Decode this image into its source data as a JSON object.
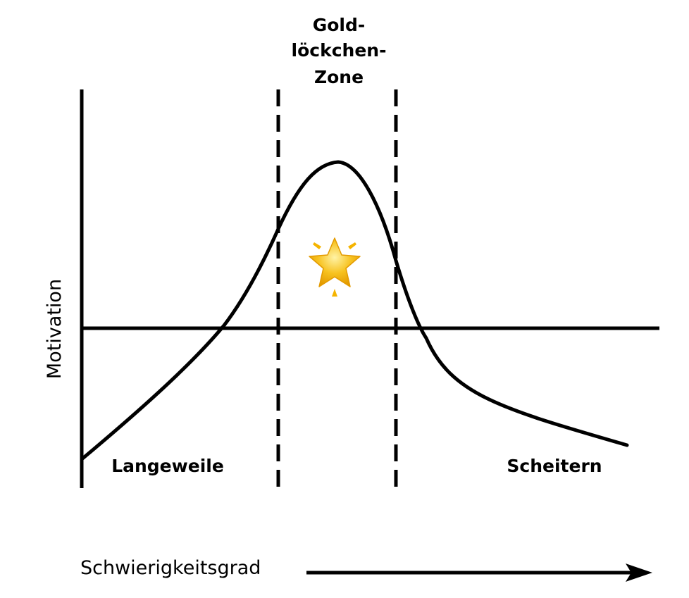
{
  "diagram": {
    "zone_title_lines": [
      "Gold-",
      "löckchen-",
      "Zone"
    ],
    "left_zone_label": "Langeweile",
    "right_zone_label": "Scheitern",
    "y_axis_label": "Motivation",
    "x_axis_label": "Schwierigkeitsgrad",
    "icon": "glowing-star-icon",
    "colors": {
      "line": "#000000",
      "star_fill": "#f7c21f",
      "star_sparkle": "#f5b400"
    }
  }
}
